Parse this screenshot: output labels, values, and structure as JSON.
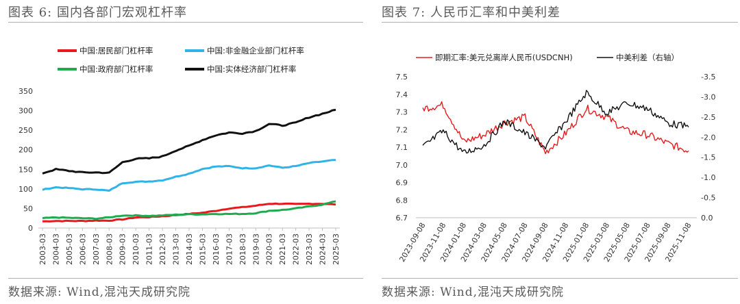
{
  "left_chart": {
    "title": "图表 6:   国内各部门宏观杠杆率",
    "source": "数据来源:  Wind,混沌天成研究院"
  },
  "right_chart": {
    "title": "图表 7:  人民币汇率和中美利差",
    "source": "数据来源:  Wind,混沌天成研究院"
  },
  "chart_data": [
    {
      "type": "line",
      "title": "国内各部门宏观杠杆率",
      "ylim": [
        0,
        350
      ],
      "yticks": [
        "0",
        "50",
        "100",
        "150",
        "200",
        "250",
        "300",
        "350"
      ],
      "x": [
        "2003-03",
        "2004-03",
        "2005-03",
        "2006-03",
        "2007-03",
        "2008-03",
        "2009-03",
        "2010-03",
        "2011-03",
        "2012-03",
        "2013-03",
        "2014-03",
        "2015-03",
        "2016-03",
        "2017-03",
        "2018-03",
        "2019-03",
        "2020-03",
        "2021-03",
        "2022-03",
        "2023-03",
        "2024-03",
        "2025-03"
      ],
      "series": [
        {
          "name": "中国:居民部门杠杆率",
          "color": "#e8191c",
          "values": [
            17,
            18,
            18,
            18,
            19,
            19,
            22,
            27,
            28,
            30,
            33,
            36,
            39,
            44,
            50,
            53,
            57,
            62,
            62,
            61,
            62,
            62,
            60
          ]
        },
        {
          "name": "中国:非金融企业部门杠杆率",
          "color": "#2eb4e6",
          "values": [
            98,
            104,
            102,
            99,
            99,
            95,
            115,
            118,
            119,
            122,
            131,
            139,
            151,
            157,
            158,
            153,
            153,
            160,
            154,
            158,
            166,
            170,
            174
          ]
        },
        {
          "name": "中国:政府部门杠杆率",
          "color": "#1faa4f",
          "values": [
            25,
            27,
            26,
            25,
            24,
            27,
            32,
            32,
            31,
            32,
            34,
            35,
            35,
            36,
            36,
            36,
            38,
            44,
            46,
            50,
            55,
            60,
            68
          ]
        },
        {
          "name": "中国:实体经济部门杠杆率",
          "color": "#111111",
          "values": [
            140,
            150,
            146,
            142,
            142,
            141,
            168,
            177,
            178,
            183,
            198,
            210,
            225,
            237,
            244,
            242,
            248,
            266,
            262,
            269,
            283,
            292,
            302
          ]
        }
      ]
    },
    {
      "type": "line",
      "title": "人民币汇率和中美利差",
      "ylim": [
        6.7,
        7.5
      ],
      "yticks": [
        "6.7",
        "6.8",
        "6.9",
        "7.0",
        "7.1",
        "7.2",
        "7.3",
        "7.4",
        "7.5"
      ],
      "y2lim": [
        0.0,
        -3.5
      ],
      "y2ticks": [
        "0.0",
        "-0.5",
        "-1.0",
        "-1.5",
        "-2.0",
        "-2.5",
        "-3.0",
        "-3.5"
      ],
      "x": [
        "2023-09-08",
        "2023-11-08",
        "2024-01-08",
        "2024-03-08",
        "2024-05-08",
        "2024-07-08",
        "2024-09-08",
        "2024-11-08",
        "2025-01-08",
        "2025-03-08",
        "2025-05-08",
        "2025-07-08",
        "2025-09-08",
        "2025-11-08"
      ],
      "series": [
        {
          "name": "即期汇率:美元兑离岸人民币(USDCNH)",
          "color": "#e8191c",
          "axis": "left",
          "values": [
            7.32,
            7.34,
            7.13,
            7.17,
            7.24,
            7.27,
            7.07,
            7.18,
            7.32,
            7.27,
            7.19,
            7.17,
            7.12,
            7.08
          ]
        },
        {
          "name": "中美利差（右轴）",
          "color": "#111111",
          "axis": "right",
          "values": [
            -1.75,
            -2.15,
            -1.6,
            -1.8,
            -2.4,
            -2.1,
            -1.75,
            -2.4,
            -3.1,
            -2.6,
            -2.85,
            -2.7,
            -2.35,
            -2.25
          ]
        }
      ]
    }
  ]
}
